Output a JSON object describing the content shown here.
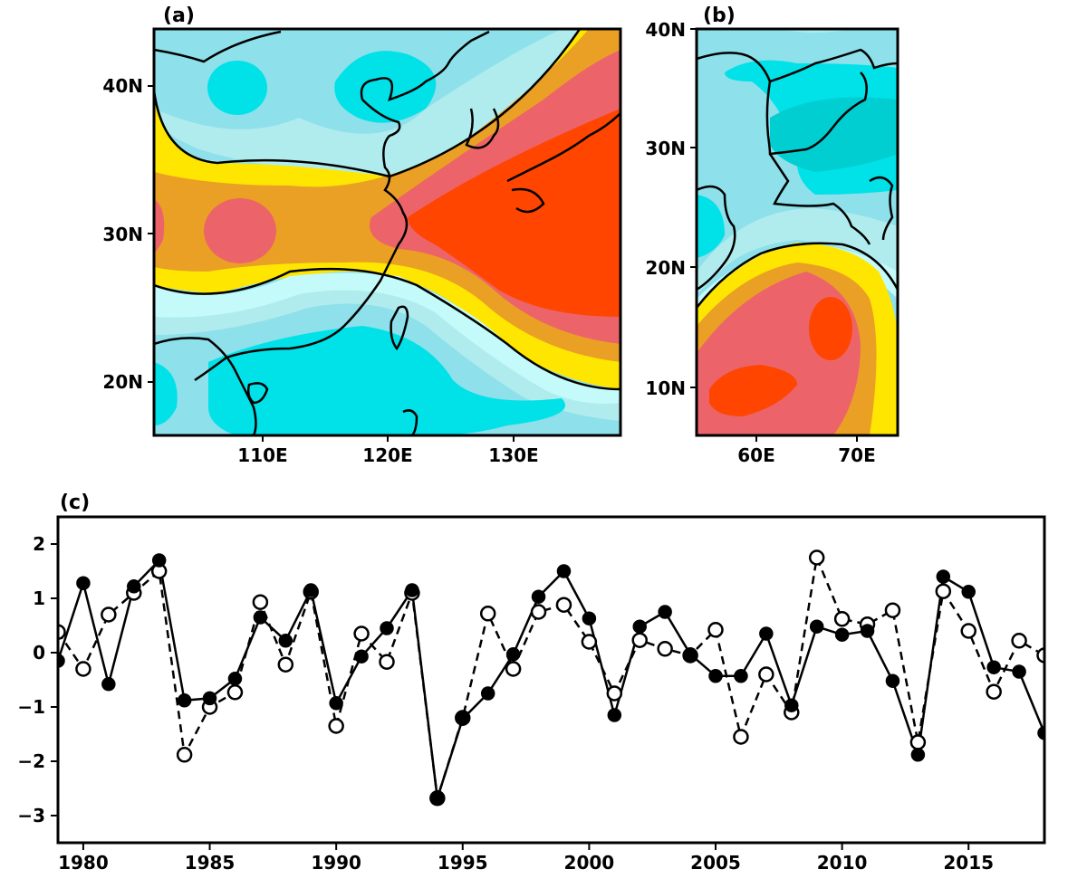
{
  "figure": {
    "panels": [
      {
        "id": "a",
        "label": "(a)",
        "type": "contour-map",
        "lon_ticks": [
          "110E",
          "120E",
          "130E"
        ],
        "lat_ticks": [
          "40N",
          "30N",
          "20N"
        ]
      },
      {
        "id": "b",
        "label": "(b)",
        "type": "contour-map",
        "lon_ticks": [
          "60E",
          "70E"
        ],
        "lat_ticks": [
          "40N",
          "30N",
          "20N",
          "10N"
        ]
      }
    ],
    "map_colors": {
      "c_neg4": "#00ced1",
      "c_neg3": "#00e1e8",
      "c_neg2": "#8ee0ea",
      "c_neg1": "#b0ecee",
      "c_neg0": "#c4fafa",
      "c_pos1": "#ffe600",
      "c_pos2": "#eaa024",
      "c_pos3": "#ec6469",
      "c_pos4": "#ff4500"
    }
  },
  "chart_data": {
    "type": "line",
    "panel_label": "(c)",
    "title": "",
    "xlabel": "",
    "ylabel": "",
    "xlim": [
      1979,
      2018
    ],
    "ylim": [
      -3.5,
      2.5
    ],
    "x_ticks": [
      1980,
      1985,
      1990,
      1995,
      2000,
      2005,
      2010,
      2015
    ],
    "y_ticks": [
      2,
      1,
      0,
      -1,
      -2,
      -3
    ],
    "grid": false,
    "legend": null,
    "x": [
      1979,
      1980,
      1981,
      1982,
      1983,
      1984,
      1985,
      1986,
      1987,
      1988,
      1989,
      1990,
      1991,
      1992,
      1993,
      1994,
      1995,
      1996,
      1997,
      1998,
      1999,
      2000,
      2001,
      2002,
      2003,
      2004,
      2005,
      2006,
      2007,
      2008,
      2009,
      2010,
      2011,
      2012,
      2013,
      2014,
      2015,
      2016,
      2017,
      2018
    ],
    "series": [
      {
        "name": "solid-filled",
        "line_style": "solid",
        "marker": "filled-circle",
        "values": [
          -0.15,
          1.28,
          -0.58,
          1.22,
          1.7,
          -0.88,
          -0.84,
          -0.48,
          0.65,
          0.22,
          1.15,
          -0.93,
          -0.07,
          0.45,
          1.15,
          -2.68,
          -1.22,
          -0.75,
          -0.03,
          1.03,
          1.5,
          0.63,
          -1.15,
          0.48,
          0.75,
          -0.03,
          -0.43,
          -0.43,
          0.35,
          -0.97,
          0.48,
          0.33,
          0.4,
          -0.52,
          -1.88,
          1.4,
          1.12,
          -0.27,
          -0.35,
          -1.48
        ]
      },
      {
        "name": "dashed-open",
        "line_style": "dashed",
        "marker": "open-circle",
        "values": [
          0.38,
          -0.3,
          0.7,
          1.1,
          1.5,
          -1.88,
          -1.0,
          -0.73,
          0.93,
          -0.22,
          1.12,
          -1.35,
          0.35,
          -0.17,
          1.1,
          -2.68,
          -1.2,
          0.72,
          -0.3,
          0.75,
          0.88,
          0.2,
          -0.75,
          0.23,
          0.07,
          -0.05,
          0.42,
          -1.55,
          -0.4,
          -1.1,
          1.75,
          0.62,
          0.52,
          0.78,
          -1.65,
          1.13,
          0.4,
          -0.72,
          0.22,
          -0.05
        ]
      }
    ]
  }
}
